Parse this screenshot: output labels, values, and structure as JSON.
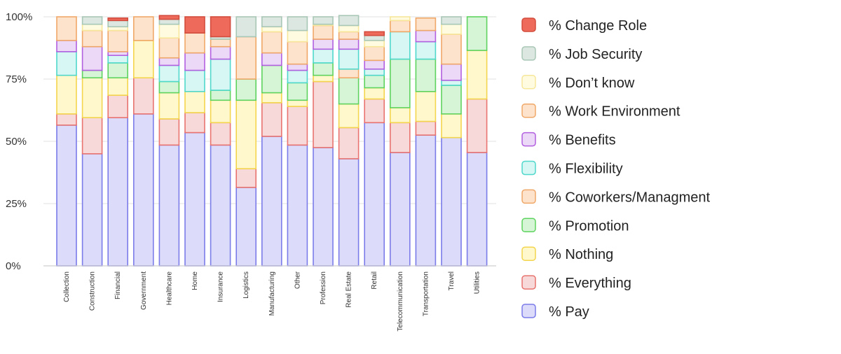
{
  "chart_data": {
    "type": "bar",
    "stacked": true,
    "title": "",
    "xlabel": "",
    "ylabel": "",
    "ylim": [
      0,
      100
    ],
    "yticks": [
      "0%",
      "25%",
      "50%",
      "75%",
      "100%"
    ],
    "grid": true,
    "legend_position": "right",
    "categories": [
      "Collection",
      "Construction",
      "Financial",
      "Government",
      "Healthcare",
      "Home",
      "Insurance",
      "Logistics",
      "Manufacturing",
      "Other",
      "Profession",
      "Real Estate",
      "Retail",
      "Telecommunication",
      "Transportation",
      "Travel",
      "Utilities"
    ],
    "series": [
      {
        "name": "% Pay",
        "fill": "#dcdcfa",
        "stroke": "#7b7bea",
        "values": [
          56.5,
          45,
          59.5,
          61,
          48.5,
          53.5,
          48.5,
          31.5,
          52,
          48.5,
          47.5,
          43,
          57.5,
          45.5,
          52.5,
          51.5,
          45.5
        ]
      },
      {
        "name": "% Everything",
        "fill": "#f8d9d9",
        "stroke": "#e8736f",
        "values": [
          4.5,
          14.5,
          9,
          14.5,
          10.5,
          8,
          9,
          7.5,
          13.5,
          15.5,
          26.5,
          12.5,
          9.5,
          12,
          5.5,
          0,
          21.5
        ]
      },
      {
        "name": "% Nothing",
        "fill": "#fff8cc",
        "stroke": "#f3d54e",
        "values": [
          15.5,
          16,
          7,
          15,
          10.5,
          8.5,
          9,
          27.5,
          4,
          2.5,
          2.5,
          9.5,
          4.5,
          6,
          12,
          9.5,
          19.5
        ]
      },
      {
        "name": "% Promotion",
        "fill": "#d6f5d6",
        "stroke": "#5fd35f",
        "values": [
          0,
          3,
          6,
          0,
          4.5,
          0,
          4,
          8.5,
          11,
          7,
          5,
          10.5,
          5,
          19.5,
          13,
          11.5,
          13.5
        ]
      },
      {
        "name": "% Coworkers/Managment",
        "fill": "#fde2cc",
        "stroke": "#f0a868",
        "values": [
          0,
          0,
          0,
          0,
          0,
          0,
          0,
          0,
          0,
          0,
          0,
          3.5,
          0,
          0,
          0,
          0,
          0
        ]
      },
      {
        "name": "% Flexibility",
        "fill": "#d6f7f3",
        "stroke": "#4fd8cb",
        "values": [
          9.5,
          0,
          3,
          0,
          6.5,
          8.5,
          12.5,
          0,
          0,
          5,
          5.5,
          8,
          2.5,
          11,
          7,
          2,
          0
        ]
      },
      {
        "name": "% Benefits",
        "fill": "#ecd9f7",
        "stroke": "#b25fe0",
        "values": [
          4.5,
          9.5,
          1.5,
          0,
          3,
          7,
          5,
          0,
          5,
          2.5,
          4,
          4,
          3.5,
          0,
          4.5,
          6.5,
          0
        ]
      },
      {
        "name": "% Work Environment",
        "fill": "#fde2cc",
        "stroke": "#f0a868",
        "values": [
          9.5,
          6.5,
          8.5,
          9.5,
          8,
          8,
          3,
          17,
          8.5,
          9,
          5.5,
          3,
          5.5,
          4.5,
          5,
          12,
          0
        ]
      },
      {
        "name": "% Don’t know",
        "fill": "#fffbe0",
        "stroke": "#f7e79a",
        "values": [
          0,
          2.5,
          1.5,
          0,
          5.5,
          0,
          0,
          0,
          2,
          4.5,
          0.5,
          2.5,
          2.5,
          1.5,
          0,
          4,
          0
        ]
      },
      {
        "name": "% Job Security",
        "fill": "#dbe7e0",
        "stroke": "#a9c7b6",
        "values": [
          0,
          3,
          2.5,
          0,
          2,
          0,
          1,
          8,
          4,
          5.5,
          3,
          4,
          2,
          0,
          0,
          3,
          0
        ]
      },
      {
        "name": "% Change Role",
        "fill": "#ee6a5b",
        "stroke": "#d34c3d",
        "values": [
          0,
          0,
          1,
          0,
          1.5,
          6.5,
          8,
          0,
          0,
          0,
          0,
          0,
          1.5,
          0,
          0,
          0,
          0
        ]
      }
    ],
    "legend_order": [
      "% Change Role",
      "% Job Security",
      "% Don’t know",
      "% Work Environment",
      "% Benefits",
      "% Flexibility",
      "% Coworkers/Managment",
      "% Promotion",
      "% Nothing",
      "% Everything",
      "% Pay"
    ]
  }
}
